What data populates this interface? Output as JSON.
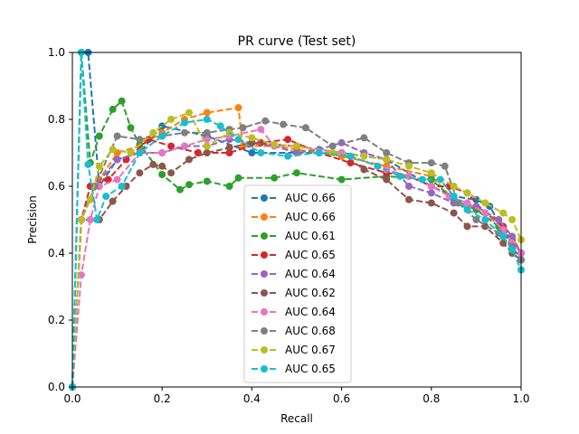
{
  "chart_data": {
    "type": "line",
    "title": "PR curve (Test set)",
    "xlabel": "Recall",
    "ylabel": "Precision",
    "xlim": [
      0,
      1
    ],
    "ylim": [
      0,
      1
    ],
    "xticks": [
      "0.0",
      "0.2",
      "0.4",
      "0.6",
      "0.8",
      "1.0"
    ],
    "yticks": [
      "0.0",
      "0.2",
      "0.4",
      "0.6",
      "0.8",
      "1.0"
    ],
    "grid": false,
    "legend": "center-bottom",
    "series": [
      {
        "name": "AUC 0.66",
        "color": "#1f77b4",
        "x": [
          0,
          0.02,
          0.035,
          0.06,
          0.1,
          0.15,
          0.2,
          0.3,
          0.4,
          0.5,
          0.6,
          0.7,
          0.8,
          0.85,
          0.9,
          0.93,
          0.96,
          0.98,
          1.0
        ],
        "y": [
          0,
          1.0,
          1.0,
          0.6,
          0.68,
          0.7,
          0.78,
          0.75,
          0.7,
          0.7,
          0.7,
          0.68,
          0.6,
          0.57,
          0.56,
          0.54,
          0.47,
          0.42,
          0.38
        ]
      },
      {
        "name": "AUC 0.66",
        "color": "#ff7f0e",
        "x": [
          0,
          0.02,
          0.06,
          0.1,
          0.15,
          0.2,
          0.25,
          0.3,
          0.37,
          0.38,
          0.45,
          0.5,
          0.6,
          0.7,
          0.8,
          0.85,
          0.9,
          0.95,
          0.98,
          1.0
        ],
        "y": [
          0,
          0.5,
          0.62,
          0.7,
          0.72,
          0.76,
          0.8,
          0.82,
          0.835,
          0.72,
          0.72,
          0.71,
          0.69,
          0.66,
          0.63,
          0.56,
          0.53,
          0.5,
          0.45,
          0.4
        ]
      },
      {
        "name": "AUC 0.61",
        "color": "#2ca02c",
        "x": [
          0,
          0.02,
          0.04,
          0.06,
          0.09,
          0.11,
          0.13,
          0.15,
          0.2,
          0.24,
          0.26,
          0.3,
          0.35,
          0.37,
          0.45,
          0.5,
          0.6,
          0.7,
          0.8,
          0.85,
          0.9,
          0.95,
          0.98,
          1.0
        ],
        "y": [
          0,
          1.0,
          0.67,
          0.75,
          0.83,
          0.855,
          0.775,
          0.725,
          0.635,
          0.59,
          0.605,
          0.615,
          0.6,
          0.625,
          0.625,
          0.64,
          0.62,
          0.63,
          0.62,
          0.56,
          0.53,
          0.48,
          0.44,
          0.4
        ]
      },
      {
        "name": "AUC 0.65",
        "color": "#d62728",
        "x": [
          0,
          0.02,
          0.04,
          0.08,
          0.12,
          0.17,
          0.22,
          0.28,
          0.35,
          0.42,
          0.48,
          0.55,
          0.62,
          0.7,
          0.75,
          0.8,
          0.84,
          0.88,
          0.92,
          0.96,
          0.98,
          1.0
        ],
        "y": [
          0,
          0.5,
          0.6,
          0.62,
          0.68,
          0.74,
          0.72,
          0.7,
          0.7,
          0.73,
          0.74,
          0.7,
          0.67,
          0.64,
          0.63,
          0.6,
          0.6,
          0.58,
          0.52,
          0.48,
          0.44,
          0.4
        ]
      },
      {
        "name": "AUC 0.64",
        "color": "#9467bd",
        "x": [
          0,
          0.02,
          0.05,
          0.1,
          0.15,
          0.2,
          0.25,
          0.3,
          0.35,
          0.4,
          0.45,
          0.5,
          0.55,
          0.6,
          0.65,
          0.7,
          0.75,
          0.8,
          0.85,
          0.9,
          0.95,
          0.98,
          1.0
        ],
        "y": [
          0,
          0.5,
          0.6,
          0.68,
          0.7,
          0.7,
          0.72,
          0.72,
          0.74,
          0.73,
          0.72,
          0.7,
          0.71,
          0.73,
          0.7,
          0.68,
          0.6,
          0.58,
          0.55,
          0.54,
          0.5,
          0.45,
          0.4
        ]
      },
      {
        "name": "AUC 0.62",
        "color": "#8c564b",
        "x": [
          0,
          0.02,
          0.04,
          0.06,
          0.09,
          0.12,
          0.15,
          0.18,
          0.2,
          0.22,
          0.26,
          0.3,
          0.35,
          0.4,
          0.5,
          0.6,
          0.65,
          0.7,
          0.75,
          0.8,
          0.85,
          0.88,
          0.92,
          0.96,
          0.98,
          1.0
        ],
        "y": [
          0,
          0.5,
          0.5,
          0.5,
          0.555,
          0.6,
          0.64,
          0.665,
          0.66,
          0.64,
          0.68,
          0.7,
          0.715,
          0.73,
          0.72,
          0.7,
          0.65,
          0.62,
          0.56,
          0.55,
          0.52,
          0.48,
          0.48,
          0.43,
          0.4,
          0.38
        ]
      },
      {
        "name": "AUC 0.64",
        "color": "#e377c2",
        "x": [
          0,
          0.02,
          0.04,
          0.06,
          0.1,
          0.15,
          0.2,
          0.25,
          0.3,
          0.35,
          0.42,
          0.45,
          0.5,
          0.6,
          0.7,
          0.75,
          0.8,
          0.84,
          0.88,
          0.92,
          0.96,
          0.98,
          1.0
        ],
        "y": [
          0,
          0.335,
          0.5,
          0.6,
          0.62,
          0.7,
          0.7,
          0.72,
          0.74,
          0.75,
          0.77,
          0.72,
          0.72,
          0.7,
          0.65,
          0.63,
          0.6,
          0.57,
          0.55,
          0.52,
          0.47,
          0.43,
          0.4
        ]
      },
      {
        "name": "AUC 0.68",
        "color": "#7f7f7f",
        "x": [
          0,
          0.02,
          0.05,
          0.1,
          0.15,
          0.2,
          0.25,
          0.3,
          0.35,
          0.38,
          0.43,
          0.47,
          0.52,
          0.58,
          0.65,
          0.7,
          0.75,
          0.8,
          0.83,
          0.86,
          0.9,
          0.95,
          0.98,
          1.0
        ],
        "y": [
          0,
          0.5,
          0.6,
          0.75,
          0.74,
          0.75,
          0.76,
          0.76,
          0.77,
          0.775,
          0.795,
          0.785,
          0.775,
          0.72,
          0.745,
          0.7,
          0.67,
          0.67,
          0.66,
          0.55,
          0.5,
          0.46,
          0.42,
          0.38
        ]
      },
      {
        "name": "AUC 0.67",
        "color": "#bcbd22",
        "x": [
          0,
          0.02,
          0.04,
          0.06,
          0.09,
          0.13,
          0.18,
          0.22,
          0.26,
          0.3,
          0.35,
          0.4,
          0.45,
          0.5,
          0.58,
          0.65,
          0.7,
          0.75,
          0.8,
          0.85,
          0.88,
          0.92,
          0.96,
          0.98,
          1.0
        ],
        "y": [
          0,
          0.5,
          0.56,
          0.66,
          0.71,
          0.7,
          0.76,
          0.8,
          0.82,
          0.72,
          0.76,
          0.745,
          0.725,
          0.72,
          0.7,
          0.69,
          0.68,
          0.66,
          0.64,
          0.6,
          0.58,
          0.55,
          0.52,
          0.5,
          0.44
        ]
      },
      {
        "name": "AUC 0.65",
        "color": "#17becf",
        "x": [
          0,
          0.02,
          0.035,
          0.055,
          0.075,
          0.11,
          0.15,
          0.2,
          0.25,
          0.3,
          0.33,
          0.37,
          0.42,
          0.48,
          0.55,
          0.62,
          0.68,
          0.73,
          0.78,
          0.82,
          0.85,
          0.88,
          0.92,
          0.96,
          0.98,
          1.0
        ],
        "y": [
          0,
          1.0,
          0.665,
          0.5,
          0.57,
          0.6,
          0.7,
          0.75,
          0.79,
          0.8,
          0.78,
          0.74,
          0.7,
          0.69,
          0.7,
          0.69,
          0.66,
          0.63,
          0.62,
          0.62,
          0.57,
          0.53,
          0.5,
          0.45,
          0.41,
          0.35
        ]
      }
    ]
  }
}
